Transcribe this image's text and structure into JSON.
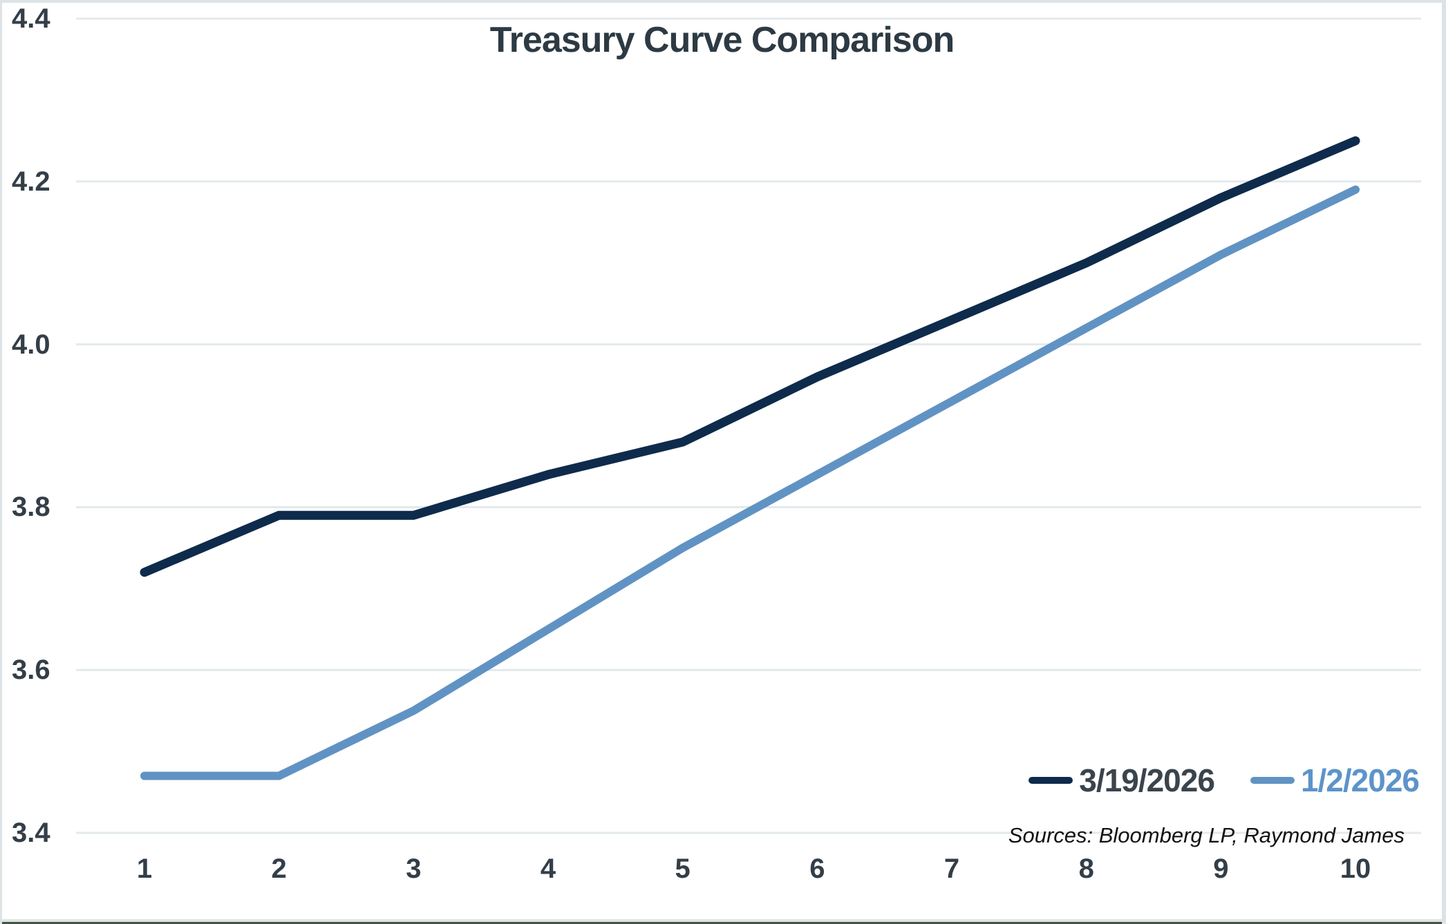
{
  "chart_data": {
    "type": "line",
    "title": "Treasury Curve Comparison",
    "categories": [
      1,
      2,
      3,
      4,
      5,
      6,
      7,
      8,
      9,
      10
    ],
    "series": [
      {
        "name": "3/19/2026",
        "color": "#0e2b4c",
        "label_color": "#3a444d",
        "values": [
          3.72,
          3.79,
          3.79,
          3.84,
          3.88,
          3.96,
          4.03,
          4.1,
          4.18,
          4.25
        ]
      },
      {
        "name": "1/2/2026",
        "color": "#6093c3",
        "label_color": "#5d94c9",
        "values": [
          3.47,
          3.47,
          3.55,
          3.65,
          3.75,
          3.84,
          3.93,
          4.02,
          4.11,
          4.19
        ]
      }
    ],
    "xlabel": "",
    "ylabel": "",
    "ylim": [
      3.4,
      4.4
    ],
    "y_ticks": [
      "4.4",
      "4.2",
      "4.0",
      "3.8",
      "3.6",
      "3.4"
    ],
    "y_tick_values": [
      4.4,
      4.2,
      4.0,
      3.8,
      3.6,
      3.4
    ],
    "x_ticks": [
      "1",
      "2",
      "3",
      "4",
      "5",
      "6",
      "7",
      "8",
      "9",
      "10"
    ],
    "grid": "horizontal",
    "gridline_color": "#e3e9ec",
    "legend_position": "bottom-right",
    "source_note": "Sources: Bloomberg LP, Raymond James"
  }
}
